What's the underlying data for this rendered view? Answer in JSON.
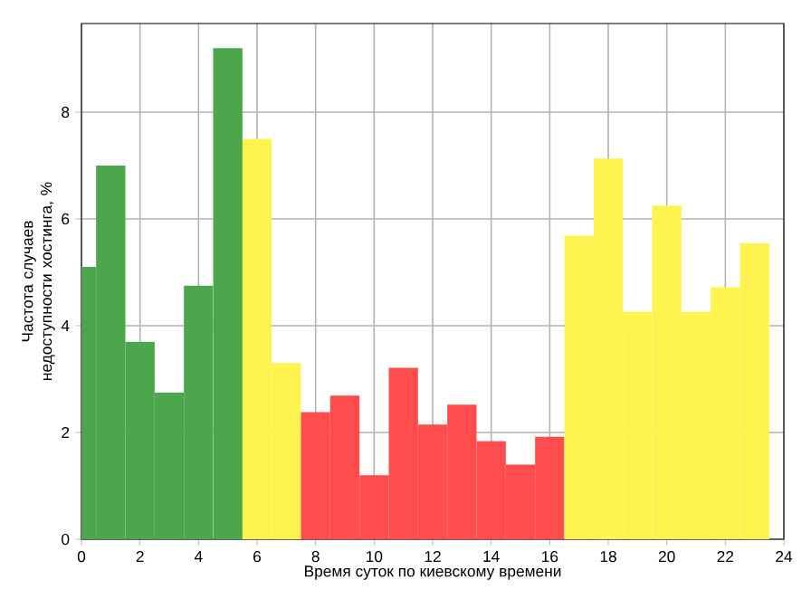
{
  "chart_data": {
    "type": "bar",
    "xlabel": "Время суток по киевскому времени",
    "ylabel": "Частота случаев недоступности хостинга, %",
    "x": [
      0,
      1,
      2,
      3,
      4,
      5,
      6,
      7,
      8,
      9,
      10,
      11,
      12,
      13,
      14,
      15,
      16,
      17,
      18,
      19,
      20,
      21,
      22,
      23
    ],
    "values": [
      5.1,
      7.0,
      3.7,
      2.75,
      4.75,
      9.2,
      7.5,
      3.3,
      2.38,
      2.69,
      1.2,
      3.21,
      2.15,
      2.52,
      1.84,
      1.4,
      1.92,
      5.68,
      7.13,
      4.26,
      6.25,
      4.26,
      4.72,
      5.54
    ],
    "colors": [
      "#4ca64c",
      "#4ca64c",
      "#4ca64c",
      "#4ca64c",
      "#4ca64c",
      "#4ca64c",
      "#fff44f",
      "#fff44f",
      "#ff4c4c",
      "#ff4c4c",
      "#ff4c4c",
      "#ff4c4c",
      "#ff4c4c",
      "#ff4c4c",
      "#ff4c4c",
      "#ff4c4c",
      "#ff4c4c",
      "#fff44f",
      "#fff44f",
      "#fff44f",
      "#fff44f",
      "#fff44f",
      "#fff44f",
      "#fff44f"
    ],
    "xlim": [
      0,
      24
    ],
    "ylim": [
      0,
      9.66
    ],
    "xticks": [
      0,
      2,
      4,
      6,
      8,
      10,
      12,
      14,
      16,
      18,
      20,
      22,
      24
    ],
    "yticks": [
      0,
      2,
      4,
      6,
      8
    ],
    "grid": true
  }
}
